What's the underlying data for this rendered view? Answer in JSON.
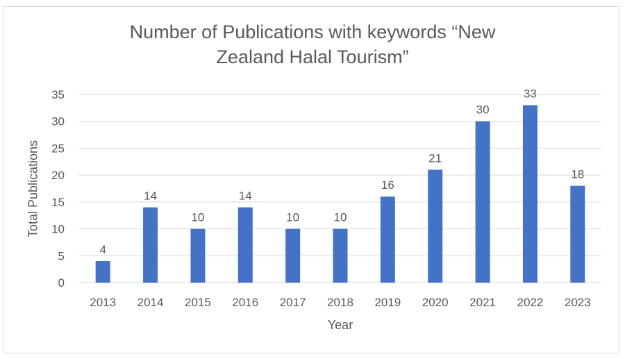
{
  "chart_data": {
    "type": "bar",
    "title": "Number of Publications with keywords “New Zealand Halal Tourism”",
    "title_lines": [
      "Number of Publications with keywords “New",
      "Zealand Halal Tourism”"
    ],
    "xlabel": "Year",
    "ylabel": "Total Publications",
    "categories": [
      "2013",
      "2014",
      "2015",
      "2016",
      "2017",
      "2018",
      "2019",
      "2020",
      "2021",
      "2022",
      "2023"
    ],
    "values": [
      4,
      14,
      10,
      14,
      10,
      10,
      16,
      21,
      30,
      33,
      18
    ],
    "ylim": [
      0,
      35
    ],
    "yticks": [
      0,
      5,
      10,
      15,
      20,
      25,
      30,
      35
    ],
    "grid": true,
    "data_labels": true,
    "legend": "none",
    "bar_color": "#4472C4",
    "text_color": "#595959",
    "grid_color": "#d9d9d9"
  }
}
